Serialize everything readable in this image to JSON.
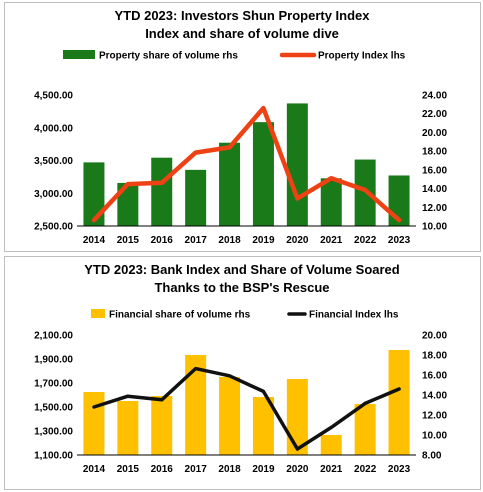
{
  "chart_data": [
    {
      "type": "bar",
      "title_lines": [
        "YTD 2023: Investors Shun Property Index",
        "Index and share of volume dive"
      ],
      "categories": [
        "2014",
        "2015",
        "2016",
        "2017",
        "2018",
        "2019",
        "2020",
        "2021",
        "2022",
        "2023"
      ],
      "series": [
        {
          "name": "Property share of volume rhs",
          "kind": "bar",
          "axis": "right",
          "color": "#1a7a1a",
          "values": [
            16.8,
            14.6,
            17.3,
            16.0,
            18.9,
            21.1,
            23.1,
            15.1,
            17.1,
            15.4
          ]
        },
        {
          "name": "Property Index lhs",
          "kind": "line",
          "axis": "left",
          "color": "#ee4215",
          "values": [
            2590,
            3140,
            3160,
            3620,
            3700,
            4300,
            2920,
            3230,
            3050,
            2590
          ]
        }
      ],
      "ylim_left": [
        2500,
        4500
      ],
      "yticks_left": [
        2500,
        3000,
        3500,
        4000,
        4500
      ],
      "yticks_left_labels": [
        "2,500.00",
        "3,000.00",
        "3,500.00",
        "4,000.00",
        "4,500.00"
      ],
      "ylim_right": [
        10,
        24
      ],
      "yticks_right": [
        10,
        12,
        14,
        16,
        18,
        20,
        22,
        24
      ],
      "yticks_right_labels": [
        "10.00",
        "12.00",
        "14.00",
        "16.00",
        "18.00",
        "20.00",
        "22.00",
        "24.00"
      ],
      "legend": "top",
      "grid": false
    },
    {
      "type": "bar",
      "title_lines": [
        "YTD 2023: Bank Index and Share of Volume Soared",
        "Thanks to the BSP's Rescue"
      ],
      "categories": [
        "2014",
        "2015",
        "2016",
        "2017",
        "2018",
        "2019",
        "2020",
        "2021",
        "2022",
        "2023"
      ],
      "series": [
        {
          "name": "Financial share of volume rhs",
          "kind": "bar",
          "axis": "right",
          "color": "#ffc000",
          "values": [
            14.3,
            13.4,
            13.9,
            18.0,
            15.8,
            13.8,
            15.6,
            10.0,
            13.1,
            18.5
          ]
        },
        {
          "name": "Financial Index lhs",
          "kind": "line",
          "axis": "left",
          "color": "#111111",
          "values": [
            1500,
            1590,
            1560,
            1820,
            1760,
            1630,
            1150,
            1330,
            1530,
            1650
          ]
        }
      ],
      "ylim_left": [
        1100,
        2100
      ],
      "yticks_left": [
        1100,
        1300,
        1500,
        1700,
        1900,
        2100
      ],
      "yticks_left_labels": [
        "1,100.00",
        "1,300.00",
        "1,500.00",
        "1,700.00",
        "1,900.00",
        "2,100.00"
      ],
      "ylim_right": [
        8,
        20
      ],
      "yticks_right": [
        8,
        10,
        12,
        14,
        16,
        18,
        20
      ],
      "yticks_right_labels": [
        "8.00",
        "10.00",
        "12.00",
        "14.00",
        "16.00",
        "18.00",
        "20.00"
      ],
      "legend": "top",
      "grid": false
    }
  ]
}
